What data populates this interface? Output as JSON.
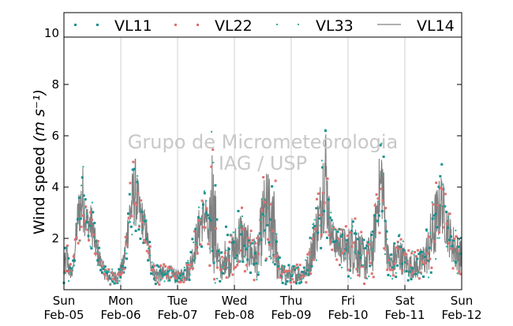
{
  "chart_data": {
    "type": "line",
    "ylabel": "Wind speed",
    "ylabel_unit_html": "(m s⁻¹)",
    "ylim": [
      0,
      10.8
    ],
    "yticks": [
      2,
      4,
      6,
      8,
      10
    ],
    "grid": "vertical lines at day boundaries",
    "legend": "top, horizontal, inside frame",
    "watermark": [
      "Grupo de Micrometeorologia",
      "IAG / USP"
    ],
    "colors": {
      "VL11": "#1a8f8f",
      "VL22": "#e07070",
      "VL33": "#29b0a0",
      "VL14": "#808080"
    },
    "x_ticks": [
      {
        "day": 0,
        "line1": "Sun",
        "line2": "Feb-05"
      },
      {
        "day": 1,
        "line1": "Mon",
        "line2": "Feb-06"
      },
      {
        "day": 2,
        "line1": "Tue",
        "line2": "Feb-07"
      },
      {
        "day": 3,
        "line1": "Wed",
        "line2": "Feb-08"
      },
      {
        "day": 4,
        "line1": "Thu",
        "line2": "Feb-09"
      },
      {
        "day": 5,
        "line1": "Fri",
        "line2": "Feb-10"
      },
      {
        "day": 6,
        "line1": "Sat",
        "line2": "Feb-11"
      },
      {
        "day": 7,
        "line1": "Sun",
        "line2": "Feb-12"
      }
    ],
    "series": [
      {
        "name": "VL11",
        "style": "dots"
      },
      {
        "name": "VL22",
        "style": "dots"
      },
      {
        "name": "VL33",
        "style": "dots"
      },
      {
        "name": "VL14",
        "style": "line"
      }
    ],
    "envelope_day": [
      0,
      0.05,
      0.1,
      0.15,
      0.25,
      0.33,
      0.4,
      0.5,
      0.55,
      0.65,
      0.75,
      0.85,
      0.95,
      1.05,
      1.15,
      1.25,
      1.33,
      1.4,
      1.45,
      1.5,
      1.6,
      1.7,
      1.8,
      1.9,
      2.0,
      2.1,
      2.2,
      2.3,
      2.4,
      2.5,
      2.55,
      2.6,
      2.65,
      2.72,
      2.8,
      2.85,
      2.9,
      3.0,
      3.1,
      3.2,
      3.3,
      3.4,
      3.5,
      3.6,
      3.65,
      3.7,
      3.75,
      3.8,
      3.9,
      4.0,
      4.1,
      4.2,
      4.3,
      4.4,
      4.5,
      4.6,
      4.65,
      4.7,
      4.8,
      4.9,
      5.0,
      5.1,
      5.2,
      5.3,
      5.4,
      5.45,
      5.5,
      5.55,
      5.6,
      5.65,
      5.7,
      5.75,
      5.8,
      5.9,
      6.0,
      6.1,
      6.2,
      6.3,
      6.4,
      6.5,
      6.6,
      6.65,
      6.7,
      6.8,
      6.9,
      7.0
    ],
    "envelope_low": [
      0.2,
      0.25,
      0.3,
      0.4,
      1.8,
      2.0,
      1.8,
      1.5,
      1.0,
      0.6,
      0.2,
      0.2,
      0.25,
      0.5,
      1.7,
      2.2,
      2.0,
      1.8,
      1.5,
      0.8,
      0.2,
      0.2,
      0.3,
      0.4,
      0.2,
      0.25,
      0.3,
      0.8,
      1.5,
      2.0,
      1.0,
      0.4,
      0.2,
      0.15,
      0.3,
      0.5,
      0.3,
      0.5,
      0.8,
      0.6,
      0.4,
      0.3,
      0.8,
      0.6,
      0.5,
      0.3,
      0.2,
      0.15,
      0.15,
      0.2,
      0.2,
      0.2,
      0.3,
      0.8,
      1.5,
      2.0,
      1.8,
      1.4,
      1.0,
      0.8,
      0.5,
      0.3,
      0.3,
      0.2,
      0.3,
      0.5,
      2.0,
      2.2,
      2.2,
      1.2,
      0.6,
      0.2,
      0.3,
      0.5,
      0.4,
      0.3,
      0.3,
      0.3,
      0.4,
      0.5,
      1.8,
      2.0,
      1.6,
      1.0,
      0.5,
      0.4
    ],
    "envelope_high": [
      1.2,
      2.2,
      1.2,
      0.8,
      4.0,
      5.2,
      3.5,
      3.5,
      2.5,
      1.5,
      0.8,
      0.8,
      0.8,
      1.5,
      4.0,
      5.6,
      4.0,
      3.5,
      3.0,
      2.0,
      1.0,
      1.0,
      1.0,
      1.0,
      0.8,
      1.0,
      1.2,
      2.5,
      3.6,
      4.0,
      2.5,
      6.8,
      5.0,
      2.0,
      1.2,
      2.5,
      2.0,
      2.5,
      3.5,
      2.8,
      2.5,
      2.0,
      4.5,
      5.3,
      3.5,
      6.4,
      2.0,
      1.2,
      1.0,
      1.0,
      1.0,
      1.0,
      1.5,
      3.0,
      4.2,
      7.6,
      4.5,
      3.0,
      2.5,
      2.6,
      2.5,
      3.5,
      2.5,
      2.0,
      2.5,
      3.0,
      4.0,
      5.5,
      6.6,
      4.0,
      2.0,
      1.5,
      2.0,
      2.2,
      1.8,
      1.5,
      1.5,
      1.8,
      2.5,
      4.0,
      4.5,
      4.9,
      4.0,
      3.0,
      2.5,
      2.0
    ]
  }
}
